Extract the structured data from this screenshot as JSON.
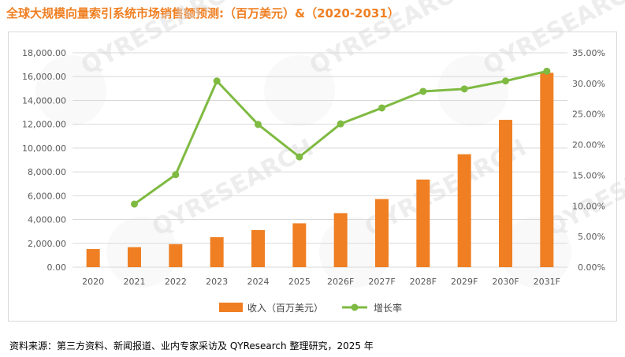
{
  "title": "全球大规模向量索引系统市场销售额预测:（百万美元）&（2020-2031）",
  "source": "资料来源：第三方资料、新闻报道、业内专家采访及 QYResearch 整理研究，2025 年",
  "watermark": "QYRESEARCH",
  "colors": {
    "bar": "#ef7f22",
    "line": "#7fba42",
    "title": "#ef7f22",
    "grid": "#d9d9d9"
  },
  "chart_data": {
    "type": "bar+line",
    "categories": [
      "2020",
      "2021",
      "2022",
      "2023",
      "2024",
      "2025",
      "2026F",
      "2027F",
      "2028F",
      "2029F",
      "2030F",
      "2031F"
    ],
    "series": [
      {
        "name": "收入（百万美元）",
        "type": "bar",
        "axis": "left",
        "values": [
          1520,
          1680,
          1930,
          2520,
          3110,
          3680,
          4540,
          5720,
          7360,
          9480,
          12370,
          16320
        ]
      },
      {
        "name": "增长率",
        "type": "line",
        "axis": "right",
        "values": [
          null,
          10.3,
          15.1,
          30.4,
          23.3,
          18.0,
          23.4,
          26.0,
          28.7,
          29.1,
          30.4,
          32.0
        ]
      }
    ],
    "y_left": {
      "min": 0,
      "max": 18000,
      "step": 2000,
      "tick_labels": [
        "0.00",
        "2,000.00",
        "4,000.00",
        "6,000.00",
        "8,000.00",
        "10,000.00",
        "12,000.00",
        "14,000.00",
        "16,000.00",
        "18,000.00"
      ]
    },
    "y_right": {
      "min": 0,
      "max": 35,
      "step": 5,
      "tick_labels": [
        "0.00%",
        "5.00%",
        "10.00%",
        "15.00%",
        "20.00%",
        "25.00%",
        "30.00%",
        "35.00%"
      ]
    },
    "grid": true,
    "legend": {
      "position": "bottom",
      "labels": [
        "收入（百万美元）",
        "增长率"
      ]
    }
  }
}
